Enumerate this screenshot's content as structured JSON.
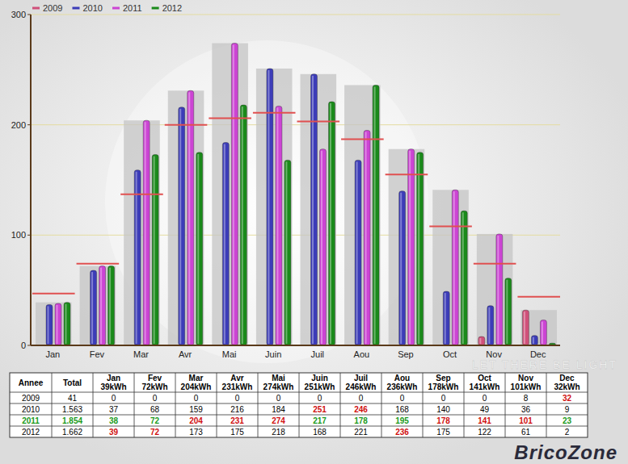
{
  "chart_data": {
    "type": "bar",
    "categories": [
      "Jan",
      "Fev",
      "Mar",
      "Avr",
      "Mai",
      "Juin",
      "Juil",
      "Aou",
      "Sep",
      "Oct",
      "Nov",
      "Dec"
    ],
    "series": [
      {
        "name": "2009",
        "color": "#d0507a",
        "values": [
          0,
          0,
          0,
          0,
          0,
          0,
          0,
          0,
          0,
          0,
          8,
          32
        ]
      },
      {
        "name": "2010",
        "color": "#3c3cb8",
        "values": [
          37,
          68,
          159,
          216,
          184,
          251,
          246,
          168,
          140,
          49,
          36,
          9
        ]
      },
      {
        "name": "2011",
        "color": "#cc44d4",
        "values": [
          38,
          72,
          204,
          231,
          274,
          217,
          178,
          195,
          178,
          141,
          101,
          23
        ]
      },
      {
        "name": "2012",
        "color": "#1a8a1a",
        "values": [
          39,
          72,
          173,
          175,
          218,
          168,
          221,
          236,
          175,
          122,
          61,
          2
        ]
      }
    ],
    "reference_bars": {
      "color": "#c4c4c4",
      "values": [
        39,
        72,
        204,
        231,
        274,
        251,
        246,
        236,
        178,
        141,
        101,
        32
      ]
    },
    "reference_lines": {
      "color": "#e05050",
      "values": [
        47,
        74,
        137,
        200,
        206,
        211,
        203,
        187,
        155,
        108,
        74,
        44
      ]
    },
    "ylim": [
      0,
      300
    ],
    "yticks": [
      0,
      100,
      200,
      300
    ],
    "grid": true,
    "legend": "top-left",
    "background_text": "LET THERE BE LIGHT",
    "watermark": "BricoZone"
  },
  "table": {
    "header": [
      "Annee",
      "Total",
      [
        "Jan",
        "39kWh"
      ],
      [
        "Fev",
        "72kWh"
      ],
      [
        "Mar",
        "204kWh"
      ],
      [
        "Avr",
        "231kWh"
      ],
      [
        "Mai",
        "274kWh"
      ],
      [
        "Juin",
        "251kWh"
      ],
      [
        "Juil",
        "246kWh"
      ],
      [
        "Aou",
        "236kWh"
      ],
      [
        "Sep",
        "178kWh"
      ],
      [
        "Oct",
        "141kWh"
      ],
      [
        "Nov",
        "101kWh"
      ],
      [
        "Dec",
        "32kWh"
      ]
    ],
    "rows": [
      {
        "color": "#000000",
        "red": [
          13
        ],
        "cells": [
          "2009",
          "41",
          "0",
          "0",
          "0",
          "0",
          "0",
          "0",
          "0",
          "0",
          "0",
          "0",
          "8",
          "32"
        ]
      },
      {
        "color": "#000000",
        "red": [
          7,
          8
        ],
        "cells": [
          "2010",
          "1.563",
          "37",
          "68",
          "159",
          "216",
          "184",
          "251",
          "246",
          "168",
          "140",
          "49",
          "36",
          "9"
        ]
      },
      {
        "color": "#1a9a1a",
        "red": [
          4,
          5,
          6,
          10,
          11,
          12
        ],
        "cells": [
          "2011",
          "1.854",
          "38",
          "72",
          "204",
          "231",
          "274",
          "217",
          "178",
          "195",
          "178",
          "141",
          "101",
          "23"
        ]
      },
      {
        "color": "#000000",
        "red": [
          2,
          3,
          9
        ],
        "cells": [
          "2012",
          "1.662",
          "39",
          "72",
          "173",
          "175",
          "218",
          "168",
          "221",
          "236",
          "175",
          "122",
          "61",
          "2"
        ]
      }
    ]
  }
}
